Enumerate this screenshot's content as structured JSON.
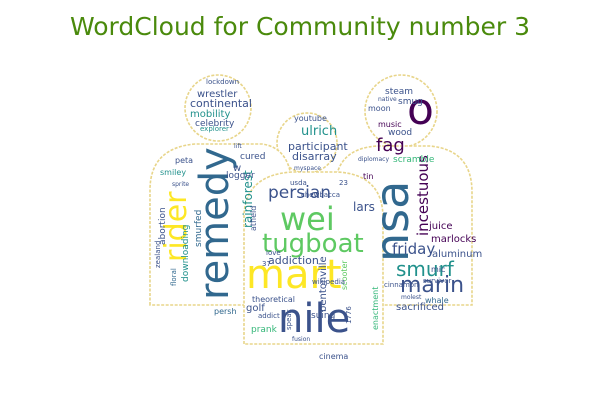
{
  "title": "WordCloud for Community number 3",
  "colors": {
    "title": "#4a8a0c",
    "outline": "#e8d58a",
    "palette": [
      "#440154",
      "#3b528b",
      "#21918c",
      "#5ec962",
      "#fde725",
      "#31688e",
      "#35b779"
    ]
  },
  "words": [
    {
      "text": "mart",
      "color": "#fde725"
    },
    {
      "text": "nile",
      "color": "#3b528b"
    },
    {
      "text": "wei",
      "color": "#5ec962"
    },
    {
      "text": "remedy",
      "color": "#31688e"
    },
    {
      "text": "nsa",
      "color": "#31688e"
    },
    {
      "text": "rider",
      "color": "#fde725"
    },
    {
      "text": "tugboat",
      "color": "#5ec962"
    },
    {
      "text": "o",
      "color": "#440154"
    },
    {
      "text": "marin",
      "color": "#3b528b"
    },
    {
      "text": "smurf",
      "color": "#21918c"
    },
    {
      "text": "persian",
      "color": "#3b528b"
    },
    {
      "text": "friday",
      "color": "#3b528b"
    },
    {
      "text": "incestuous",
      "color": "#440154"
    },
    {
      "text": "rainforest",
      "color": "#21918c"
    },
    {
      "text": "fag",
      "color": "#440154"
    },
    {
      "text": "ulrich",
      "color": "#21918c"
    },
    {
      "text": "continental",
      "color": "#3b528b"
    },
    {
      "text": "participant",
      "color": "#3b528b"
    },
    {
      "text": "disarray",
      "color": "#3b528b"
    },
    {
      "text": "mobility",
      "color": "#21918c"
    },
    {
      "text": "wrestler",
      "color": "#3b528b"
    },
    {
      "text": "celebrity",
      "color": "#3b528b"
    },
    {
      "text": "addiction",
      "color": "#3b528b"
    },
    {
      "text": "scramble",
      "color": "#35b779"
    },
    {
      "text": "lars",
      "color": "#3b528b"
    },
    {
      "text": "marlocks",
      "color": "#440154"
    },
    {
      "text": "aluminum",
      "color": "#3b528b"
    },
    {
      "text": "sacrificed",
      "color": "#3b528b"
    },
    {
      "text": "juice",
      "color": "#440154"
    },
    {
      "text": "steam",
      "color": "#3b528b"
    },
    {
      "text": "smug",
      "color": "#3b528b"
    },
    {
      "text": "wood",
      "color": "#3b528b"
    },
    {
      "text": "music",
      "color": "#440154"
    },
    {
      "text": "bentonville",
      "color": "#3b528b"
    },
    {
      "text": "golf",
      "color": "#3b528b"
    },
    {
      "text": "prank",
      "color": "#35b779"
    },
    {
      "text": "abortion",
      "color": "#3b528b"
    },
    {
      "text": "smurfed",
      "color": "#31688e"
    },
    {
      "text": "downloading",
      "color": "#21918c"
    },
    {
      "text": "logger",
      "color": "#3b528b"
    },
    {
      "text": "cured",
      "color": "#3b528b"
    },
    {
      "text": "smiley",
      "color": "#21918c"
    },
    {
      "text": "peta",
      "color": "#3b528b"
    },
    {
      "text": "persh",
      "color": "#31688e"
    },
    {
      "text": "suing",
      "color": "#3b528b"
    },
    {
      "text": "cinema",
      "color": "#3b528b"
    },
    {
      "text": "theoretical",
      "color": "#3b528b"
    },
    {
      "text": "scooter",
      "color": "#5ec962"
    },
    {
      "text": "whale",
      "color": "#31688e"
    },
    {
      "text": "mic",
      "color": "#3b528b"
    },
    {
      "text": "youtube",
      "color": "#3b528b"
    },
    {
      "text": "moon",
      "color": "#3b528b"
    },
    {
      "text": "tin",
      "color": "#440154"
    },
    {
      "text": "explorer",
      "color": "#21918c"
    },
    {
      "text": "lockdown",
      "color": "#3b528b"
    },
    {
      "text": "usda",
      "color": "#3b528b"
    },
    {
      "text": "chewbacca",
      "color": "#3b528b"
    },
    {
      "text": "love",
      "color": "#3b528b"
    },
    {
      "text": "wikipedia",
      "color": "#3b528b"
    },
    {
      "text": "floral",
      "color": "#31688e"
    },
    {
      "text": "1776",
      "color": "#3b528b"
    },
    {
      "text": "cinnamon",
      "color": "#3b528b"
    },
    {
      "text": "survivor",
      "color": "#3b528b"
    },
    {
      "text": "diplomacy",
      "color": "#3b528b"
    },
    {
      "text": "myspace",
      "color": "#3b528b"
    },
    {
      "text": "zealand",
      "color": "#3b528b"
    },
    {
      "text": "addict",
      "color": "#3b528b"
    },
    {
      "text": "speak",
      "color": "#3b528b"
    },
    {
      "text": "molest",
      "color": "#3b528b"
    },
    {
      "text": "enactment",
      "color": "#35b779"
    },
    {
      "text": "lift",
      "color": "#3b528b"
    },
    {
      "text": "w",
      "color": "#3b528b"
    },
    {
      "text": "37",
      "color": "#3b528b"
    },
    {
      "text": "23",
      "color": "#3b528b"
    },
    {
      "text": "sprite",
      "color": "#3b528b"
    },
    {
      "text": "native",
      "color": "#3b528b"
    },
    {
      "text": "fusion",
      "color": "#3b528b"
    },
    {
      "text": "atfield",
      "color": "#3b528b"
    }
  ]
}
